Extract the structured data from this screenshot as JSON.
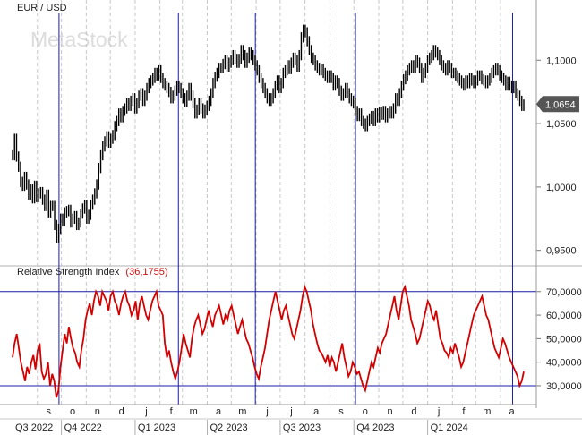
{
  "chart_data": [
    {
      "type": "line",
      "title": "EUR / USD",
      "watermark": "MetaStock",
      "ylim": [
        0.9385,
        1.1475
      ],
      "y_ticks": [
        "1,1000",
        "1,0500",
        "1,0000",
        "0,9500"
      ],
      "y_tick_values": [
        1.1,
        1.05,
        1.0,
        0.95
      ],
      "last_value_label": "1,0654",
      "last_value": 1.0654,
      "series": [
        {
          "values": [
            1.025,
            1.038,
            1.024,
            1.016,
            1.004,
            1.001,
            1.008,
            1.002,
            0.994,
            0.998,
            0.991,
            1.001,
            0.992,
            0.995,
            0.996,
            0.99,
            0.985,
            0.994,
            0.98,
            0.985,
            0.985,
            0.97,
            0.96,
            0.967,
            0.975,
            0.973,
            0.98,
            0.981,
            0.982,
            0.972,
            0.975,
            0.977,
            0.97,
            0.972,
            0.979,
            0.983,
            0.986,
            0.975,
            0.978,
            0.986,
            0.99,
            0.995,
            1.002,
            1.015,
            1.025,
            1.032,
            1.036,
            1.04,
            1.035,
            1.038,
            1.041,
            1.048,
            1.052,
            1.058,
            1.055,
            1.06,
            1.062,
            1.066,
            1.064,
            1.068,
            1.07,
            1.062,
            1.066,
            1.072,
            1.074,
            1.068,
            1.072,
            1.078,
            1.082,
            1.084,
            1.086,
            1.09,
            1.088,
            1.092,
            1.086,
            1.082,
            1.08,
            1.078,
            1.075,
            1.07,
            1.072,
            1.076,
            1.08,
            1.078,
            1.074,
            1.07,
            1.067,
            1.072,
            1.078,
            1.072,
            1.066,
            1.058,
            1.061,
            1.066,
            1.062,
            1.058,
            1.061,
            1.064,
            1.068,
            1.074,
            1.082,
            1.087,
            1.09,
            1.094,
            1.094,
            1.097,
            1.1,
            1.095,
            1.098,
            1.1,
            1.104,
            1.101,
            1.098,
            1.101,
            1.108,
            1.104,
            1.098,
            1.102,
            1.106,
            1.104,
            1.1,
            1.096,
            1.092,
            1.086,
            1.082,
            1.078,
            1.074,
            1.07,
            1.068,
            1.07,
            1.074,
            1.08,
            1.084,
            1.078,
            1.082,
            1.09,
            1.092,
            1.096,
            1.093,
            1.098,
            1.102,
            1.1,
            1.095,
            1.104,
            1.118,
            1.124,
            1.122,
            1.115,
            1.108,
            1.102,
            1.1,
            1.096,
            1.094,
            1.092,
            1.093,
            1.09,
            1.088,
            1.086,
            1.088,
            1.086,
            1.08,
            1.084,
            1.082,
            1.076,
            1.072,
            1.074,
            1.078,
            1.074,
            1.07,
            1.068,
            1.066,
            1.06,
            1.056,
            1.058,
            1.052,
            1.05,
            1.048,
            1.052,
            1.054,
            1.056,
            1.052,
            1.058,
            1.055,
            1.059,
            1.057,
            1.06,
            1.055,
            1.058,
            1.06,
            1.058,
            1.062,
            1.07,
            1.068,
            1.074,
            1.08,
            1.085,
            1.088,
            1.092,
            1.094,
            1.096,
            1.094,
            1.1,
            1.098,
            1.094,
            1.086,
            1.09,
            1.094,
            1.1,
            1.102,
            1.104,
            1.108,
            1.106,
            1.104,
            1.1,
            1.096,
            1.094,
            1.092,
            1.096,
            1.094,
            1.09,
            1.09,
            1.088,
            1.086,
            1.084,
            1.082,
            1.08,
            1.084,
            1.082,
            1.086,
            1.084,
            1.082,
            1.084,
            1.088,
            1.088,
            1.085,
            1.084,
            1.082,
            1.084,
            1.086,
            1.09,
            1.092,
            1.094,
            1.092,
            1.088,
            1.086,
            1.084,
            1.08,
            1.083,
            1.08,
            1.078,
            1.08,
            1.074,
            1.072,
            1.068,
            1.064,
            1.065
          ]
        }
      ]
    },
    {
      "type": "line",
      "title": "Relative Strength Index",
      "title_value": "(36,1755)",
      "last_value": 36.1755,
      "ylim": [
        22,
        76
      ],
      "y_ticks": [
        "70,0000",
        "60,0000",
        "50,0000",
        "40,0000",
        "30,0000"
      ],
      "y_tick_values": [
        70,
        60,
        50,
        40,
        30
      ],
      "reference_lines": [
        70,
        30
      ],
      "series": [
        {
          "values": [
            42,
            48,
            52,
            46,
            40,
            36,
            32,
            38,
            35,
            40,
            43,
            37,
            45,
            48,
            36,
            33,
            35,
            40,
            30,
            35,
            32,
            25,
            28,
            38,
            45,
            52,
            48,
            55,
            50,
            46,
            44,
            40,
            38,
            45,
            50,
            58,
            62,
            65,
            60,
            66,
            70,
            68,
            64,
            70,
            68,
            66,
            62,
            68,
            70,
            66,
            64,
            60,
            65,
            68,
            70,
            66,
            64,
            60,
            62,
            66,
            58,
            65,
            68,
            64,
            60,
            58,
            62,
            66,
            68,
            70,
            64,
            62,
            60,
            48,
            42,
            45,
            40,
            36,
            33,
            36,
            40,
            46,
            52,
            48,
            45,
            42,
            50,
            55,
            58,
            60,
            56,
            52,
            54,
            58,
            62,
            58,
            55,
            60,
            62,
            64,
            60,
            56,
            60,
            58,
            62,
            64,
            60,
            56,
            52,
            55,
            58,
            54,
            50,
            48,
            45,
            42,
            38,
            35,
            33,
            38,
            42,
            46,
            52,
            58,
            62,
            66,
            70,
            66,
            62,
            58,
            62,
            64,
            60,
            56,
            52,
            50,
            54,
            58,
            62,
            68,
            72,
            70,
            66,
            62,
            56,
            52,
            48,
            45,
            44,
            42,
            40,
            43,
            38,
            42,
            40,
            36,
            40,
            44,
            48,
            42,
            38,
            34,
            36,
            40,
            38,
            35,
            36,
            33,
            30,
            28,
            32,
            36,
            40,
            38,
            42,
            46,
            44,
            48,
            50,
            52,
            56,
            60,
            64,
            68,
            62,
            58,
            64,
            70,
            72,
            68,
            64,
            58,
            55,
            52,
            48,
            50,
            54,
            58,
            62,
            66,
            64,
            60,
            58,
            62,
            56,
            50,
            48,
            45,
            44,
            42,
            46,
            44,
            48,
            45,
            42,
            38,
            40,
            44,
            48,
            52,
            56,
            60,
            62,
            64,
            66,
            68,
            64,
            60,
            58,
            54,
            50,
            46,
            44,
            42,
            46,
            50,
            48,
            45,
            42,
            40,
            38,
            36,
            34,
            30,
            32,
            36
          ]
        }
      ],
      "x_ticks": [
        "s",
        "o",
        "n",
        "d",
        "j",
        "f",
        "m",
        "a",
        "m",
        "j",
        "j",
        "a",
        "s",
        "o",
        "n",
        "d",
        "j",
        "f",
        "m",
        "a"
      ],
      "quarters": [
        "Q3 2022",
        "Q4 2022",
        "Q1 2023",
        "Q2 2023",
        "Q3 2023",
        "Q4 2023",
        "Q1 2024"
      ],
      "markers": [
        "2022-09-28",
        "2023-02-24",
        "2023-05-31",
        "2023-10-03",
        "2024-04-16"
      ]
    }
  ]
}
